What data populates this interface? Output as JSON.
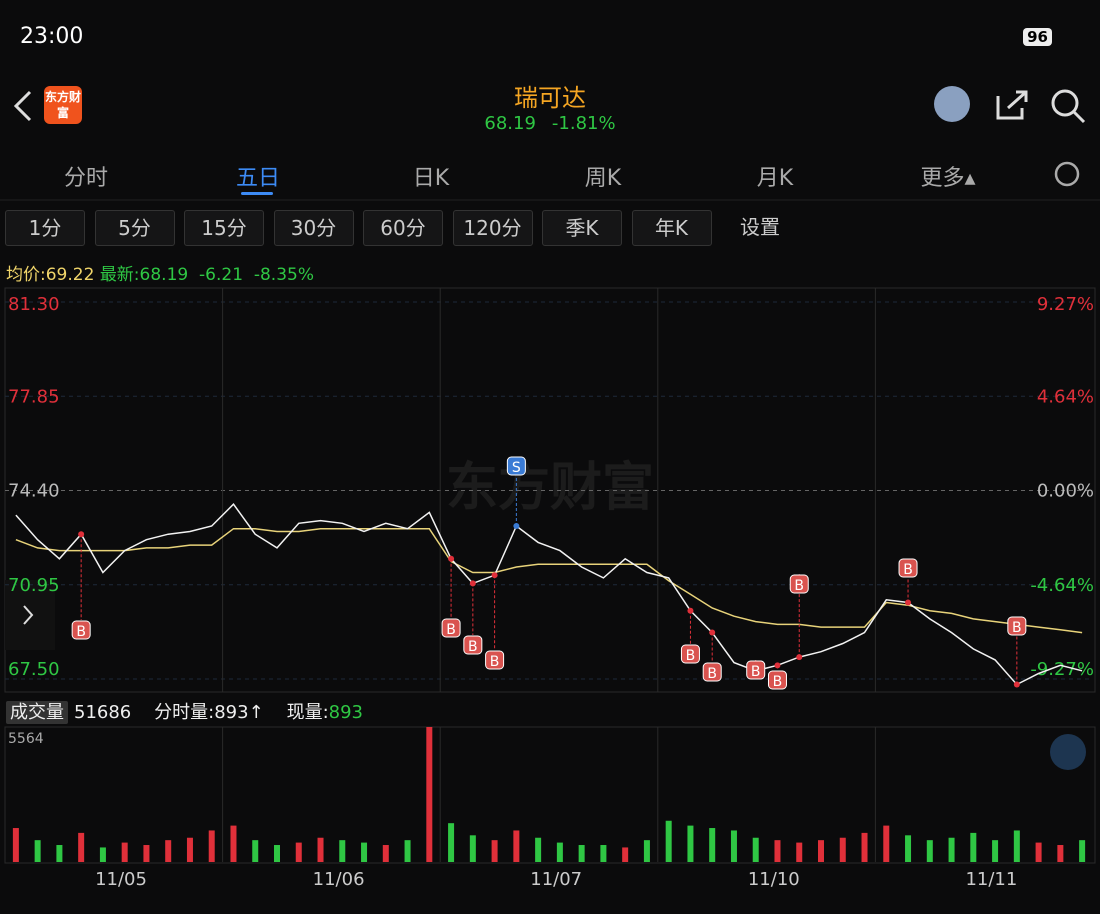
{
  "status": {
    "time": "23:00",
    "battery": "96"
  },
  "header": {
    "logo": "东方财富",
    "name": "瑞可达",
    "price": "68.19",
    "change": "-1.81%"
  },
  "tabs": [
    "分时",
    "五日",
    "日K",
    "周K",
    "月K",
    "更多▴"
  ],
  "periods": [
    "1分",
    "5分",
    "15分",
    "30分",
    "60分",
    "120分",
    "季K",
    "年K",
    "设置"
  ],
  "info": {
    "avg_label": "均价:",
    "avg": "69.22",
    "last_label": "最新:",
    "last": "68.19",
    "chg": "-6.21",
    "pct": "-8.35%"
  },
  "chart": {
    "prices": [
      {
        "value": 81.3,
        "label": "81.30"
      },
      77.85,
      {
        "value": 74.4,
        "label": "74.40"
      },
      70.95,
      {
        "value": 67.5,
        "label": "67.50"
      }
    ],
    "percents": [
      "9.27%",
      "4.64%",
      "0.00%",
      "-4.64%",
      "-9.27%"
    ],
    "dates": [
      "11/05",
      "11/06",
      "11/07",
      "11/10",
      "11/11"
    ],
    "price": [
      73.5,
      72.6,
      71.9,
      72.8,
      71.4,
      72.2,
      72.6,
      72.8,
      72.9,
      73.1,
      73.9,
      72.8,
      72.3,
      73.2,
      73.3,
      73.2,
      72.9,
      73.2,
      73.0,
      73.6,
      71.9,
      71.0,
      71.3,
      73.1,
      72.5,
      72.2,
      71.6,
      71.2,
      71.9,
      71.4,
      71.2,
      70.0,
      69.2,
      68.1,
      67.8,
      68.0,
      68.3,
      68.5,
      68.8,
      69.2,
      70.4,
      70.3,
      69.7,
      69.2,
      68.6,
      68.2,
      67.3,
      67.7,
      68.0,
      67.8
    ],
    "avg": [
      72.6,
      72.3,
      72.2,
      72.2,
      72.2,
      72.2,
      72.3,
      72.3,
      72.4,
      72.4,
      73.0,
      73.0,
      72.9,
      72.9,
      73.0,
      73.0,
      73.0,
      73.0,
      73.0,
      73.0,
      71.8,
      71.4,
      71.4,
      71.6,
      71.7,
      71.7,
      71.7,
      71.7,
      71.7,
      71.7,
      71.1,
      70.6,
      70.1,
      69.8,
      69.6,
      69.5,
      69.5,
      69.4,
      69.4,
      69.4,
      70.3,
      70.2,
      70.0,
      69.9,
      69.7,
      69.6,
      69.5,
      69.4,
      69.3,
      69.2
    ],
    "markers": [
      "B",
      "S",
      "B",
      "B",
      "B",
      "B",
      "B",
      "B",
      "B",
      "B",
      "B",
      "B"
    ],
    "volume_label": "成交量",
    "volume_total": "51686",
    "seg_label": "分时量:",
    "seg_value": "893↑",
    "now_label": "现量:",
    "now_value": "893",
    "volume_max": 5564,
    "volume": [
      1400,
      900,
      700,
      1200,
      600,
      800,
      700,
      900,
      1000,
      1300,
      1500,
      900,
      700,
      800,
      1000,
      900,
      800,
      700,
      900,
      5564,
      1600,
      1100,
      900,
      1300,
      1000,
      800,
      700,
      700,
      600,
      900,
      1700,
      1500,
      1400,
      1300,
      1000,
      900,
      800,
      900,
      1000,
      1200,
      1500,
      1100,
      900,
      1000,
      1200,
      900,
      1300,
      800,
      700,
      900
    ]
  }
}
